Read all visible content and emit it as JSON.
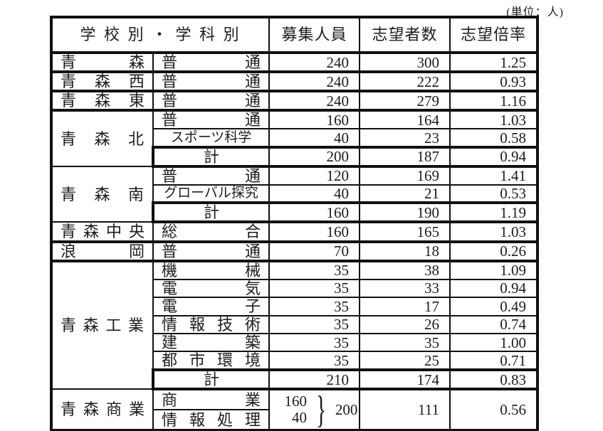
{
  "unit_note": "(単位：人)",
  "colors": {
    "border": "#111111",
    "text": "#1c1c1c",
    "background": "#ffffff"
  },
  "brace_glyph": "}",
  "table": {
    "header": {
      "school_dept": "学 校 別 ・ 学 科 別",
      "capacity": "募集人員",
      "applicants": "志望者数",
      "ratio": "志望倍率"
    },
    "total_label": "計",
    "groups": [
      {
        "school": "青 森",
        "rows": [
          {
            "dept": "普 通",
            "cap": "240",
            "app": "300",
            "ratio": "1.25"
          }
        ]
      },
      {
        "school": "青 森 西",
        "rows": [
          {
            "dept": "普 通",
            "cap": "240",
            "app": "222",
            "ratio": "0.93"
          }
        ]
      },
      {
        "school": "青 森 東",
        "rows": [
          {
            "dept": "普 通",
            "cap": "240",
            "app": "279",
            "ratio": "1.16"
          }
        ]
      },
      {
        "school": "青 森 北",
        "rows": [
          {
            "dept": "普 通",
            "cap": "160",
            "app": "164",
            "ratio": "1.03"
          },
          {
            "dept": "スポーツ科学",
            "cap": "40",
            "app": "23",
            "ratio": "0.58"
          }
        ],
        "total": {
          "label": "計",
          "cap": "200",
          "app": "187",
          "ratio": "0.94"
        }
      },
      {
        "school": "青 森 南",
        "rows": [
          {
            "dept": "普 通",
            "cap": "120",
            "app": "169",
            "ratio": "1.41"
          },
          {
            "dept": "グローバル探究",
            "cap": "40",
            "app": "21",
            "ratio": "0.53"
          }
        ],
        "total": {
          "label": "計",
          "cap": "160",
          "app": "190",
          "ratio": "1.19"
        }
      },
      {
        "school": "青 森 中 央",
        "rows": [
          {
            "dept": "総 合",
            "cap": "160",
            "app": "165",
            "ratio": "1.03"
          }
        ]
      },
      {
        "school": "浪 岡",
        "rows": [
          {
            "dept": "普 通",
            "cap": "70",
            "app": "18",
            "ratio": "0.26"
          }
        ]
      },
      {
        "school": "青 森 工 業",
        "rows": [
          {
            "dept": "機 械",
            "cap": "35",
            "app": "38",
            "ratio": "1.09"
          },
          {
            "dept": "電 気",
            "cap": "35",
            "app": "33",
            "ratio": "0.94"
          },
          {
            "dept": "電 子",
            "cap": "35",
            "app": "17",
            "ratio": "0.49"
          },
          {
            "dept": "情 報 技 術",
            "cap": "35",
            "app": "26",
            "ratio": "0.74"
          },
          {
            "dept": "建 築",
            "cap": "35",
            "app": "35",
            "ratio": "1.00"
          },
          {
            "dept": "都 市 環 境",
            "cap": "35",
            "app": "25",
            "ratio": "0.71"
          }
        ],
        "total": {
          "label": "計",
          "cap": "210",
          "app": "174",
          "ratio": "0.83"
        }
      },
      {
        "school": "青 森 商 業",
        "depts": [
          "商 業",
          "情 報 処 理"
        ],
        "capacity_parts": [
          "160",
          "40"
        ],
        "capacity_total": "200",
        "app": "111",
        "ratio": "0.56"
      }
    ]
  }
}
